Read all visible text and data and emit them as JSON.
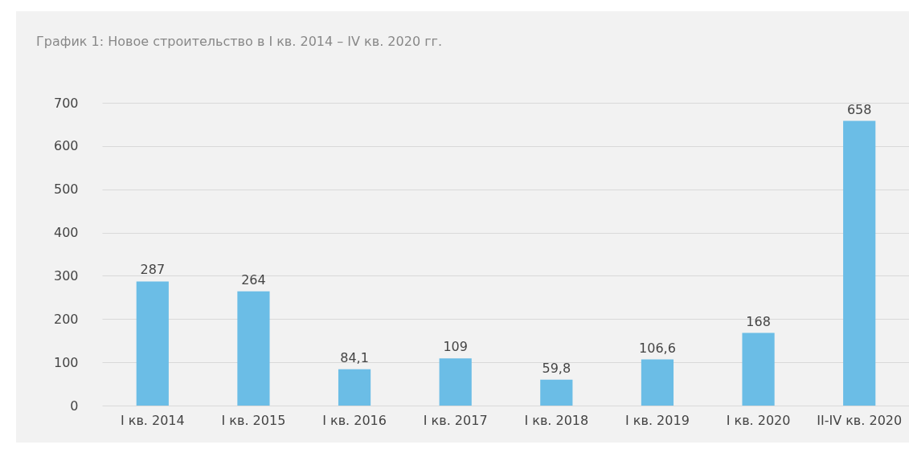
{
  "chart_data": {
    "type": "bar",
    "title": "График 1: Новое строительство в I кв. 2014 – IV кв. 2020 гг.",
    "categories": [
      "I кв. 2014",
      "I кв. 2015",
      "I кв. 2016",
      "I кв. 2017",
      "I кв. 2018",
      "I кв. 2019",
      "I кв. 2020",
      "II-IV кв. 2020"
    ],
    "values": [
      287,
      264,
      84.1,
      109,
      59.8,
      106.6,
      168,
      658
    ],
    "value_labels": [
      "287",
      "264",
      "84,1",
      "109",
      "59,8",
      "106,6",
      "168",
      "658"
    ],
    "color": "#6bbde6",
    "ylim": [
      0,
      700
    ],
    "yticks": [
      0,
      100,
      200,
      300,
      400,
      500,
      600,
      700
    ],
    "grid": "y"
  }
}
